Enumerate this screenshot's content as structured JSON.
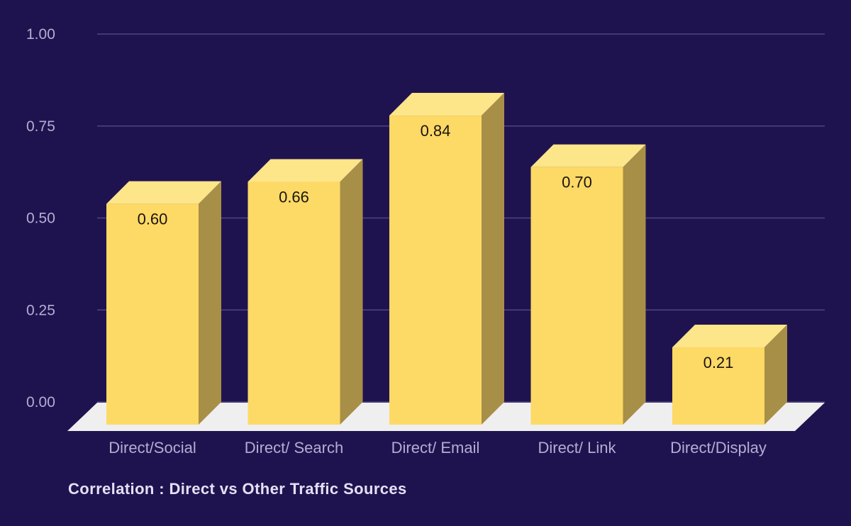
{
  "chart_data": {
    "type": "bar",
    "title": "Correlation : Direct vs Other Traffic Sources",
    "xlabel": "",
    "ylabel": "",
    "categories": [
      "Direct/Social",
      "Direct/ Search",
      "Direct/ Email",
      "Direct/ Link",
      "Direct/Display"
    ],
    "values": [
      0.6,
      0.66,
      0.84,
      0.7,
      0.21
    ],
    "data_labels": [
      "0.60",
      "0.66",
      "0.84",
      "0.70",
      "0.21"
    ],
    "ylim": [
      0,
      1
    ],
    "yticks": [
      0,
      0.25,
      0.5,
      0.75,
      1
    ],
    "ytick_labels": [
      "0.00",
      "0.25",
      "0.50",
      "0.75",
      "1.00"
    ],
    "grid": true,
    "legend": "none",
    "colors": {
      "background": "#1f134f",
      "bar_front": "#fdd965",
      "bar_top": "#fde58a",
      "bar_side": "#a88f47",
      "floor": "#efeff0",
      "grid": "#4e4583",
      "tick_text": "#b3aed3",
      "title_text": "#e6e0f5",
      "data_label_text": "#1a1410"
    }
  }
}
